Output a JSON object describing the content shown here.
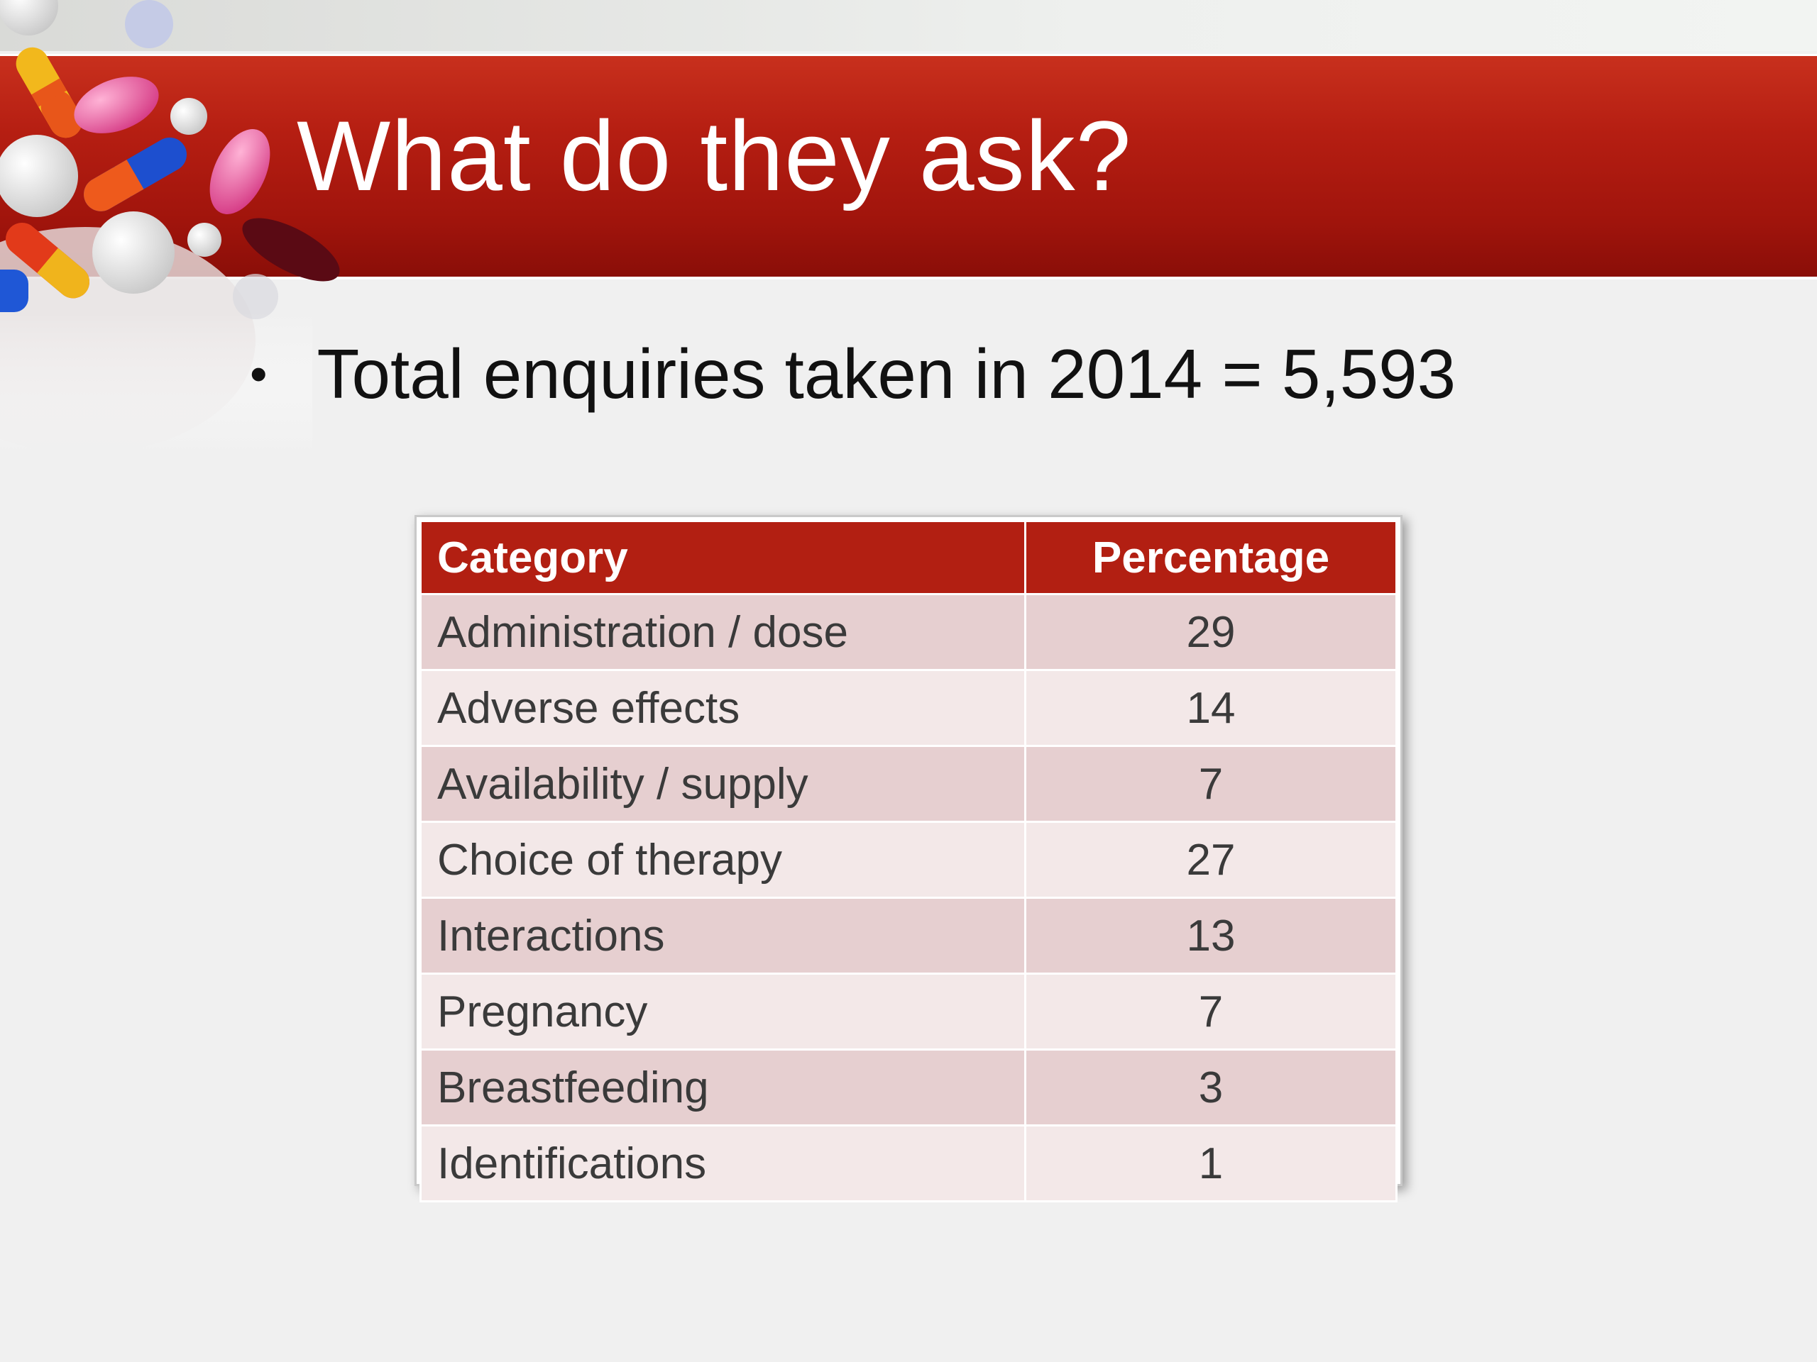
{
  "slide": {
    "title": "What do they ask?",
    "bullet": "Total enquiries taken in 2014 = 5,593"
  },
  "table": {
    "headers": [
      "Category",
      "Percentage"
    ],
    "rows": [
      {
        "category": "Administration / dose",
        "percentage": "29"
      },
      {
        "category": "Adverse effects",
        "percentage": "14"
      },
      {
        "category": "Availability / supply",
        "percentage": "7"
      },
      {
        "category": "Choice of therapy",
        "percentage": "27"
      },
      {
        "category": "Interactions",
        "percentage": "13"
      },
      {
        "category": "Pregnancy",
        "percentage": "7"
      },
      {
        "category": "Breastfeeding",
        "percentage": "3"
      },
      {
        "category": "Identifications",
        "percentage": "1"
      }
    ]
  },
  "colors": {
    "title_band": "#b51e12",
    "header_fill": "#b21f12",
    "row_dark": "#e6cfd0",
    "row_light": "#f3e8e8"
  },
  "decorations": {
    "corner_image": "pills-and-capsules-image"
  }
}
